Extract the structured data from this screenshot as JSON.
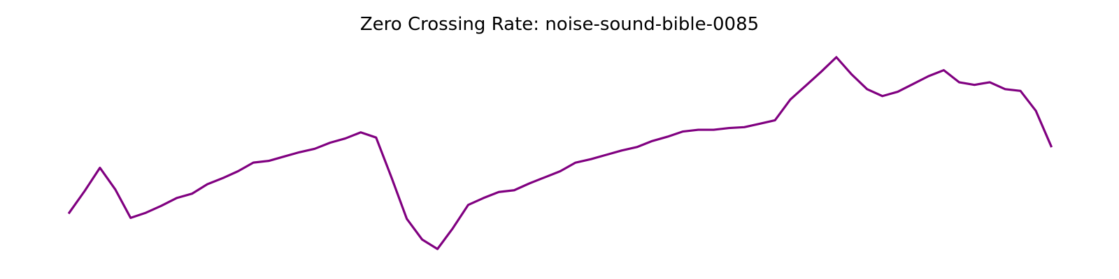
{
  "chart_data": {
    "type": "line",
    "title": "Zero Crossing Rate: noise-sound-bible-0085",
    "xlabel": "",
    "ylabel": "",
    "axes_visible": false,
    "grid": false,
    "legend": "none",
    "color": "#800080",
    "x": [
      0,
      1,
      2,
      3,
      4,
      5,
      6,
      7,
      8,
      9,
      10,
      11,
      12,
      13,
      14,
      15,
      16,
      17,
      18,
      19,
      20,
      21,
      22,
      23,
      24,
      25,
      26,
      27,
      28,
      29,
      30,
      31,
      32,
      33,
      34,
      35,
      36,
      37,
      38,
      39,
      40,
      41,
      42,
      43,
      44,
      45,
      46,
      47,
      48,
      49,
      50,
      51,
      52,
      53,
      54,
      55,
      56,
      57,
      58,
      59,
      60,
      61,
      62,
      63,
      64
    ],
    "series": [
      {
        "values": [
          0.31,
          0.335,
          0.362,
          0.337,
          0.304,
          0.31,
          0.318,
          0.327,
          0.332,
          0.343,
          0.35,
          0.358,
          0.368,
          0.37,
          0.375,
          0.38,
          0.384,
          0.391,
          0.396,
          0.403,
          0.397,
          0.351,
          0.303,
          0.279,
          0.268,
          0.292,
          0.319,
          0.327,
          0.334,
          0.336,
          0.344,
          0.351,
          0.358,
          0.368,
          0.372,
          0.377,
          0.382,
          0.386,
          0.393,
          0.398,
          0.404,
          0.406,
          0.406,
          0.408,
          0.409,
          0.413,
          0.417,
          0.441,
          0.457,
          0.473,
          0.49,
          0.47,
          0.453,
          0.445,
          0.45,
          0.459,
          0.468,
          0.475,
          0.461,
          0.458,
          0.461,
          0.453,
          0.451,
          0.428,
          0.387
        ]
      }
    ]
  }
}
